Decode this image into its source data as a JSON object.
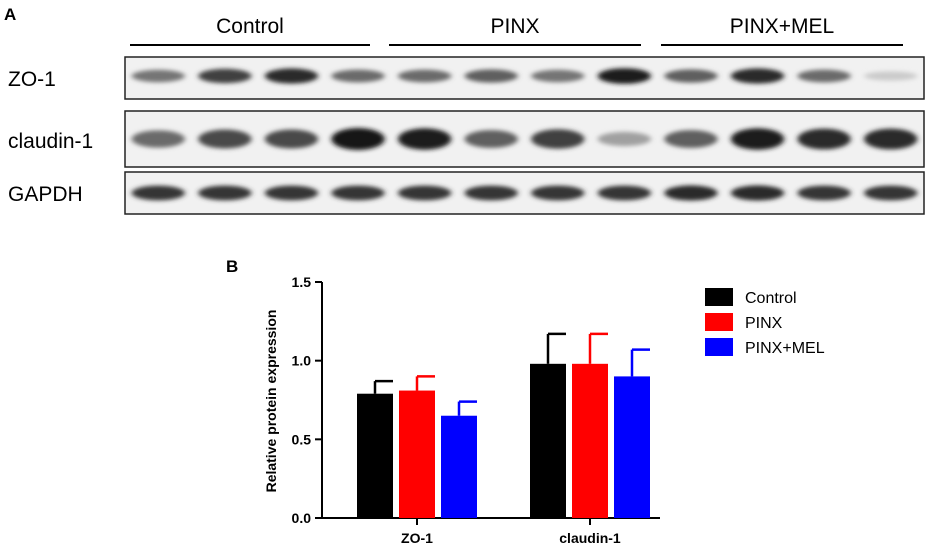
{
  "panel_a": {
    "label": "A",
    "groups": [
      {
        "name": "Control",
        "lanes": 4
      },
      {
        "name": "PINX",
        "lanes": 4
      },
      {
        "name": "PINX+MEL",
        "lanes": 4
      }
    ],
    "rows": [
      {
        "name": "ZO-1",
        "intensity": [
          0.55,
          0.8,
          0.9,
          0.6,
          0.6,
          0.65,
          0.55,
          0.95,
          0.65,
          0.9,
          0.6,
          0.15
        ]
      },
      {
        "name": "claudin-1",
        "intensity": [
          0.6,
          0.75,
          0.75,
          1.0,
          0.95,
          0.65,
          0.8,
          0.35,
          0.65,
          0.95,
          0.9,
          0.9
        ]
      },
      {
        "name": "GAPDH",
        "intensity": [
          0.85,
          0.85,
          0.85,
          0.85,
          0.85,
          0.85,
          0.85,
          0.85,
          0.9,
          0.9,
          0.85,
          0.85
        ]
      }
    ]
  },
  "chart_data": {
    "panel_label": "B",
    "type": "bar",
    "categories": [
      "ZO-1",
      "claudin-1"
    ],
    "ylabel": "Relative protein expression",
    "xlabel": "",
    "ylim": [
      0,
      1.5
    ],
    "yticks": [
      "0.0",
      "0.5",
      "1.0",
      "1.5"
    ],
    "legend_position": "right",
    "series": [
      {
        "name": "Control",
        "color": "#000000",
        "values": [
          0.79,
          0.98
        ],
        "errors": [
          0.08,
          0.19
        ]
      },
      {
        "name": "PINX",
        "color": "#ff0000",
        "values": [
          0.81,
          0.98
        ],
        "errors": [
          0.09,
          0.19
        ]
      },
      {
        "name": "PINX+MEL",
        "color": "#0000ff",
        "values": [
          0.65,
          0.9
        ],
        "errors": [
          0.09,
          0.17
        ]
      }
    ]
  }
}
